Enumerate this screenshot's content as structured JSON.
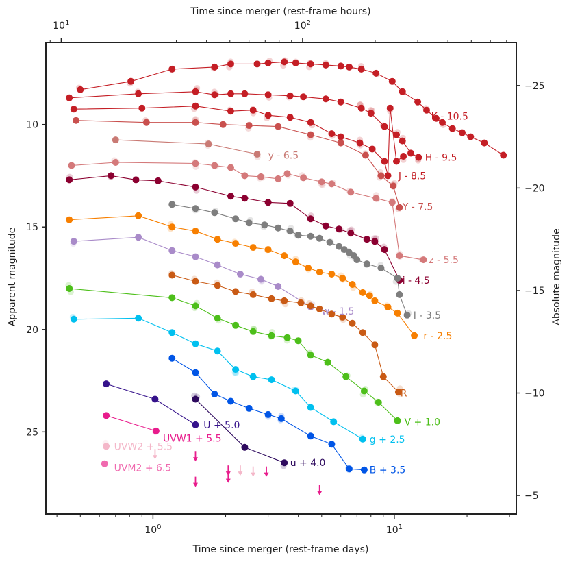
{
  "chart_data": {
    "type": "scatter",
    "title": "",
    "xlabel": "Time since merger (rest-frame days)",
    "x2label": "Time since merger (rest-frame hours)",
    "ylabel": "Apparent magnitude",
    "y2label": "Absolute magnitude",
    "xscale": "log",
    "xlim": [
      0.36,
      32
    ],
    "ylim": [
      29.0,
      6.0
    ],
    "y_inverted": true,
    "x2lim": [
      8.64,
      768
    ],
    "y2lim": [
      -4.1,
      -27.1
    ],
    "x_ticks": [
      {
        "value": 1,
        "base": "10",
        "exp": "0"
      },
      {
        "value": 10,
        "base": "10",
        "exp": "1"
      }
    ],
    "x2_ticks": [
      {
        "value": 10,
        "base": "10",
        "exp": "1"
      },
      {
        "value": 100,
        "base": "10",
        "exp": "2"
      }
    ],
    "y_ticks": [
      {
        "value": 10,
        "label": "10"
      },
      {
        "value": 15,
        "label": "15"
      },
      {
        "value": 20,
        "label": "20"
      },
      {
        "value": 25,
        "label": "25"
      }
    ],
    "y2_ticks": [
      {
        "value": -25,
        "label": "−25"
      },
      {
        "value": -20,
        "label": "−20"
      },
      {
        "value": -15,
        "label": "−15"
      },
      {
        "value": -10,
        "label": "−10"
      },
      {
        "value": -5,
        "label": "−5"
      }
    ],
    "series": [
      {
        "name": "K - 10.5",
        "color": "#c41e25",
        "label_at": [
          14.2,
          9.6
        ],
        "anchor": "start",
        "points": [
          [
            0.5,
            8.3
          ],
          [
            0.81,
            7.9
          ],
          [
            1.2,
            7.3
          ],
          [
            1.8,
            7.2
          ],
          [
            2.1,
            7.05
          ],
          [
            2.7,
            7.05
          ],
          [
            3.0,
            7.0
          ],
          [
            3.5,
            6.95
          ],
          [
            3.9,
            7.0
          ],
          [
            4.5,
            7.05
          ],
          [
            5.2,
            7.1
          ],
          [
            6.0,
            7.15
          ],
          [
            6.5,
            7.2
          ],
          [
            7.3,
            7.3
          ],
          [
            8.4,
            7.5
          ],
          [
            9.8,
            7.9
          ],
          [
            10.8,
            8.4
          ],
          [
            12.5,
            8.9
          ],
          [
            13.6,
            9.3
          ],
          [
            14.9,
            9.7
          ],
          [
            15.8,
            9.9
          ],
          [
            17.4,
            10.2
          ],
          [
            19.1,
            10.4
          ],
          [
            20.7,
            10.6
          ],
          [
            23.6,
            10.9
          ],
          [
            28.3,
            11.5
          ]
        ]
      },
      {
        "name": "H - 9.5",
        "color": "#c41e25",
        "label_at": [
          13.4,
          11.6
        ],
        "anchor": "start",
        "points": [
          [
            0.45,
            8.7
          ],
          [
            0.87,
            8.5
          ],
          [
            1.5,
            8.4
          ],
          [
            1.8,
            8.55
          ],
          [
            2.1,
            8.5
          ],
          [
            2.4,
            8.5
          ],
          [
            3.0,
            8.55
          ],
          [
            3.7,
            8.6
          ],
          [
            4.2,
            8.65
          ],
          [
            5.2,
            8.75
          ],
          [
            6.0,
            8.9
          ],
          [
            7.3,
            9.2
          ],
          [
            8.0,
            9.45
          ],
          [
            9.1,
            10.1
          ],
          [
            10.2,
            10.5
          ],
          [
            10.8,
            10.8
          ],
          [
            11.7,
            11.4
          ],
          [
            12.6,
            11.6
          ]
        ]
      },
      {
        "name": "J - 8.5",
        "color": "#c41e25",
        "label_at": [
          10.4,
          12.5
        ],
        "anchor": "start",
        "points": [
          [
            0.47,
            9.25
          ],
          [
            0.9,
            9.2
          ],
          [
            1.5,
            9.1
          ],
          [
            2.1,
            9.35
          ],
          [
            2.6,
            9.3
          ],
          [
            3.0,
            9.55
          ],
          [
            3.7,
            9.65
          ],
          [
            4.5,
            9.9
          ],
          [
            5.5,
            10.45
          ],
          [
            6.0,
            10.6
          ],
          [
            7.2,
            10.9
          ],
          [
            8.1,
            11.2
          ],
          [
            9.1,
            11.8
          ],
          [
            9.4,
            12.5
          ],
          [
            9.6,
            9.2
          ],
          [
            10.2,
            11.8
          ],
          [
            10.9,
            11.55
          ]
        ]
      },
      {
        "name": "Y - 7.5",
        "color": "#c9504e",
        "label_at": [
          10.8,
          14.0
        ],
        "anchor": "start",
        "points": [
          [
            0.48,
            9.8
          ],
          [
            0.94,
            9.9
          ],
          [
            1.5,
            9.9
          ],
          [
            1.95,
            10.0
          ],
          [
            2.5,
            10.05
          ],
          [
            3.3,
            10.1
          ],
          [
            4.5,
            10.5
          ],
          [
            6.0,
            10.9
          ],
          [
            7.6,
            11.5
          ],
          [
            8.8,
            12.5
          ],
          [
            9.9,
            13.0
          ],
          [
            10.5,
            14.05
          ]
        ]
      },
      {
        "name": "y - 6.5",
        "color": "#c97a74",
        "label_at": [
          3.0,
          11.5
        ],
        "anchor": "start",
        "points": [
          [
            0.7,
            10.75
          ],
          [
            1.7,
            10.95
          ],
          [
            2.7,
            11.45
          ]
        ]
      },
      {
        "name": "z - 5.5",
        "color": "#d4797a",
        "label_at": [
          13.9,
          16.6
        ],
        "anchor": "start",
        "points": [
          [
            0.46,
            12.0
          ],
          [
            0.7,
            11.85
          ],
          [
            1.5,
            11.9
          ],
          [
            1.8,
            12.0
          ],
          [
            2.1,
            12.1
          ],
          [
            2.4,
            12.5
          ],
          [
            2.8,
            12.55
          ],
          [
            3.3,
            12.65
          ],
          [
            3.6,
            12.4
          ],
          [
            4.2,
            12.6
          ],
          [
            5.0,
            12.8
          ],
          [
            5.5,
            12.9
          ],
          [
            6.6,
            13.3
          ],
          [
            8.4,
            13.6
          ],
          [
            9.8,
            13.8
          ],
          [
            10.5,
            16.4
          ],
          [
            13.2,
            16.6
          ]
        ]
      },
      {
        "name": "i - 4.5",
        "color": "#8b0030",
        "label_at": [
          10.8,
          17.6
        ],
        "anchor": "start",
        "points": [
          [
            0.45,
            12.7
          ],
          [
            0.67,
            12.5
          ],
          [
            0.85,
            12.7
          ],
          [
            1.05,
            12.75
          ],
          [
            1.5,
            13.05
          ],
          [
            2.1,
            13.5
          ],
          [
            2.4,
            13.6
          ],
          [
            3.0,
            13.8
          ],
          [
            3.7,
            13.85
          ],
          [
            4.5,
            14.6
          ],
          [
            5.2,
            14.95
          ],
          [
            5.9,
            15.1
          ],
          [
            6.6,
            15.3
          ],
          [
            7.7,
            15.6
          ],
          [
            8.3,
            15.7
          ],
          [
            9.1,
            16.1
          ],
          [
            10.5,
            17.6
          ]
        ]
      },
      {
        "name": "I - 3.5",
        "color": "#7e7e7e",
        "label_at": [
          12.0,
          19.3
        ],
        "anchor": "start",
        "points": [
          [
            1.2,
            13.9
          ],
          [
            1.5,
            14.1
          ],
          [
            1.8,
            14.3
          ],
          [
            2.2,
            14.6
          ],
          [
            2.5,
            14.8
          ],
          [
            2.9,
            14.9
          ],
          [
            3.3,
            15.05
          ],
          [
            3.7,
            15.2
          ],
          [
            4.0,
            15.4
          ],
          [
            4.5,
            15.45
          ],
          [
            4.9,
            15.55
          ],
          [
            5.4,
            15.75
          ],
          [
            5.9,
            15.95
          ],
          [
            6.2,
            16.1
          ],
          [
            6.5,
            16.25
          ],
          [
            6.8,
            16.4
          ],
          [
            7.0,
            16.6
          ],
          [
            7.7,
            16.8
          ],
          [
            8.8,
            17.0
          ],
          [
            10.3,
            17.5
          ],
          [
            10.5,
            18.3
          ],
          [
            11.3,
            19.3
          ]
        ]
      },
      {
        "name": "r - 2.5",
        "color": "#f77f00",
        "label_at": [
          13.2,
          20.3
        ],
        "anchor": "start",
        "points": [
          [
            0.45,
            14.65
          ],
          [
            0.87,
            14.45
          ],
          [
            1.2,
            15.0
          ],
          [
            1.5,
            15.2
          ],
          [
            1.85,
            15.6
          ],
          [
            2.2,
            15.8
          ],
          [
            2.6,
            16.0
          ],
          [
            3.0,
            16.1
          ],
          [
            3.5,
            16.4
          ],
          [
            3.9,
            16.7
          ],
          [
            4.4,
            17.0
          ],
          [
            4.9,
            17.2
          ],
          [
            5.5,
            17.3
          ],
          [
            6.1,
            17.5
          ],
          [
            6.7,
            17.8
          ],
          [
            7.4,
            18.2
          ],
          [
            7.9,
            18.35
          ],
          [
            8.3,
            18.6
          ],
          [
            9.4,
            18.9
          ],
          [
            10.3,
            19.2
          ],
          [
            12.1,
            20.3
          ]
        ]
      },
      {
        "name": "w - 1.5",
        "color": "#a98bc9",
        "label_at": [
          5.0,
          19.1
        ],
        "anchor": "start",
        "points": [
          [
            0.47,
            15.7
          ],
          [
            0.87,
            15.5
          ],
          [
            1.2,
            16.15
          ],
          [
            1.5,
            16.45
          ],
          [
            1.85,
            16.85
          ],
          [
            2.3,
            17.3
          ],
          [
            2.8,
            17.55
          ],
          [
            3.3,
            17.9
          ],
          [
            4.5,
            18.9
          ]
        ]
      },
      {
        "name": "R",
        "color": "#c95a14",
        "label_at": [
          10.6,
          23.1
        ],
        "anchor": "start",
        "points": [
          [
            1.2,
            17.35
          ],
          [
            1.5,
            17.65
          ],
          [
            1.85,
            17.85
          ],
          [
            2.2,
            18.15
          ],
          [
            2.6,
            18.3
          ],
          [
            3.1,
            18.5
          ],
          [
            3.5,
            18.6
          ],
          [
            4.1,
            18.7
          ],
          [
            4.5,
            18.85
          ],
          [
            4.9,
            19.0
          ],
          [
            5.5,
            19.25
          ],
          [
            6.1,
            19.4
          ],
          [
            6.7,
            19.7
          ],
          [
            7.4,
            20.15
          ],
          [
            8.3,
            20.75
          ],
          [
            9.0,
            22.3
          ],
          [
            10.4,
            23.05
          ]
        ]
      },
      {
        "name": "V + 1.0",
        "color": "#4dbf1a",
        "label_at": [
          11.0,
          24.5
        ],
        "anchor": "start",
        "points": [
          [
            0.45,
            18.0
          ],
          [
            1.2,
            18.45
          ],
          [
            1.5,
            18.85
          ],
          [
            1.85,
            19.45
          ],
          [
            2.2,
            19.8
          ],
          [
            2.6,
            20.1
          ],
          [
            3.1,
            20.3
          ],
          [
            3.6,
            20.4
          ],
          [
            4.0,
            20.55
          ],
          [
            4.5,
            21.25
          ],
          [
            5.3,
            21.6
          ],
          [
            6.3,
            22.3
          ],
          [
            7.5,
            23.0
          ],
          [
            8.6,
            23.55
          ],
          [
            10.3,
            24.45
          ]
        ]
      },
      {
        "name": "g + 2.5",
        "color": "#00c0ef",
        "label_at": [
          7.9,
          25.35
        ],
        "anchor": "start",
        "points": [
          [
            0.47,
            19.5
          ],
          [
            0.87,
            19.45
          ],
          [
            1.2,
            20.15
          ],
          [
            1.5,
            20.7
          ],
          [
            1.85,
            21.05
          ],
          [
            2.2,
            21.95
          ],
          [
            2.6,
            22.3
          ],
          [
            3.1,
            22.45
          ],
          [
            3.9,
            23.0
          ],
          [
            4.5,
            23.8
          ],
          [
            5.6,
            24.5
          ],
          [
            7.4,
            25.35
          ]
        ]
      },
      {
        "name": "B + 3.5",
        "color": "#0055e6",
        "label_at": [
          7.9,
          26.85
        ],
        "anchor": "start",
        "points": [
          [
            1.2,
            21.4
          ],
          [
            1.5,
            22.1
          ],
          [
            1.8,
            23.15
          ],
          [
            2.1,
            23.5
          ],
          [
            2.5,
            23.85
          ],
          [
            3.0,
            24.15
          ],
          [
            3.4,
            24.35
          ],
          [
            4.5,
            25.2
          ],
          [
            5.5,
            25.6
          ],
          [
            6.5,
            26.8
          ],
          [
            7.5,
            26.85
          ]
        ]
      },
      {
        "name": "U + 5.0",
        "color": "#35128b",
        "label_at": [
          1.62,
          24.65
        ],
        "anchor": "start",
        "points": [
          [
            0.64,
            22.65
          ],
          [
            1.02,
            23.4
          ],
          [
            1.5,
            24.65
          ]
        ]
      },
      {
        "name": "u + 4.0",
        "color": "#2e0a5e",
        "label_at": [
          3.7,
          26.5
        ],
        "anchor": "start",
        "points": [
          [
            1.5,
            23.4
          ],
          [
            2.4,
            25.75
          ],
          [
            3.5,
            26.5
          ]
        ]
      },
      {
        "name": "UVW1 + 5.5",
        "color": "#e81c8c",
        "label_at": [
          1.1,
          25.3
        ],
        "anchor": "start",
        "points": [
          [
            0.64,
            24.2
          ],
          [
            1.03,
            24.95
          ]
        ]
      },
      {
        "name": "UVW2 + 5.5",
        "color": "#f4b7c9",
        "label_at": [
          0.69,
          25.7
        ],
        "anchor": "start",
        "points": [
          [
            0.64,
            25.7
          ]
        ]
      },
      {
        "name": "UVM2 + 6.5",
        "color": "#f06aaf",
        "label_at": [
          0.69,
          26.75
        ],
        "anchor": "start",
        "points": [
          [
            0.63,
            26.55
          ]
        ]
      }
    ],
    "upper_limits": [
      {
        "x": 1.02,
        "y": 26.1,
        "color": "#f4b7c9"
      },
      {
        "x": 1.5,
        "y": 26.2,
        "color": "#e81c8c"
      },
      {
        "x": 1.5,
        "y": 27.45,
        "color": "#e81c8c"
      },
      {
        "x": 2.05,
        "y": 26.9,
        "color": "#e81c8c"
      },
      {
        "x": 2.05,
        "y": 27.25,
        "color": "#e81c8c"
      },
      {
        "x": 2.3,
        "y": 26.9,
        "color": "#f4b7c9"
      },
      {
        "x": 2.6,
        "y": 26.95,
        "color": "#f4b7c9"
      },
      {
        "x": 2.95,
        "y": 26.95,
        "color": "#e81c8c"
      },
      {
        "x": 4.9,
        "y": 27.85,
        "color": "#e81c8c"
      }
    ]
  }
}
